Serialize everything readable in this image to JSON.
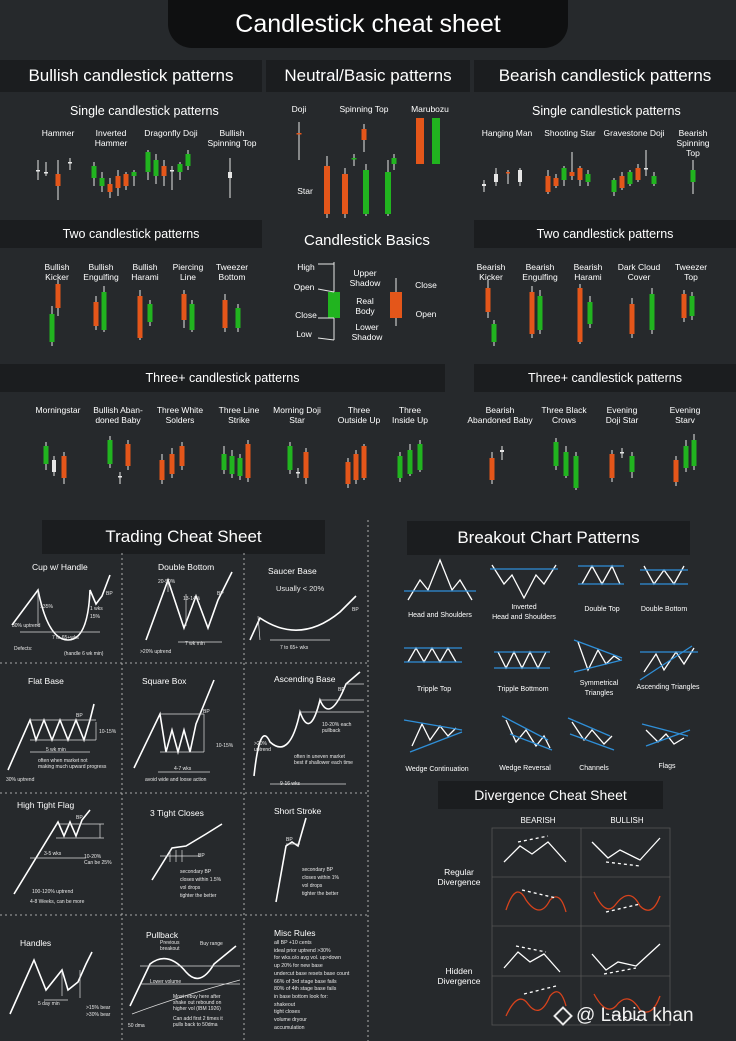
{
  "title": "Candlestick cheat sheet",
  "colors": {
    "bull": "#21b41f",
    "bear": "#e4561a",
    "bg": "#26292c",
    "banner": "#1b1d1f",
    "blue": "#2f8fd8"
  },
  "sections": {
    "bullish": "Bullish candlestick patterns",
    "neutral": "Neutral/Basic patterns",
    "bearish": "Bearish candlestick patterns",
    "single_left": "Single candlestick patterns",
    "single_right": "Single candlestick patterns",
    "two_left": "Two candlestick patterns",
    "two_right": "Two candlestick patterns",
    "basics": "Candlestick Basics",
    "three_left": "Three+ candlestick patterns",
    "three_right": "Three+ candlestick patterns",
    "trading": "Trading Cheat Sheet",
    "breakout": "Breakout Chart Patterns",
    "divergence": "Divergence Cheat Sheet"
  },
  "bullish_single": [
    "Hammer",
    "Inverted\nHammer",
    "Dragonfly Doji",
    "Bullish\nSpinning Top"
  ],
  "neutral_patterns": [
    "Doji",
    "Spinning Top",
    "Marubozu",
    "Star"
  ],
  "bearish_single": [
    "Hanging Man",
    "Shooting Star",
    "Gravestone Doji",
    "Bearish\nSpinning Top"
  ],
  "bullish_two": [
    "Bullish\nKicker",
    "Bullish\nEngulfing",
    "Bullish\nHarami",
    "Piercing\nLine",
    "Tweezer\nBottom"
  ],
  "bearish_two": [
    "Bearish\nKicker",
    "Bearish\nEngulfing",
    "Bearish\nHarami",
    "Dark Cloud\nCover",
    "Tweezer\nTop"
  ],
  "basics_labels": {
    "high": "High",
    "open_l": "Open",
    "close_l": "Close",
    "low": "Low",
    "upper": "Upper\nShadow",
    "real": "Real\nBody",
    "lower": "Lower\nShadow",
    "close_r": "Close",
    "open_r": "Open"
  },
  "bullish_three": [
    "Morningstar",
    "Bullish Aban-\ndoned Baby",
    "Three White\nSolders",
    "Three Line\nStrike",
    "Morning Doji\nStar",
    "Three\nOutside Up",
    "Three\nInside Up"
  ],
  "bearish_three": [
    "Bearish\nAbandoned Baby",
    "Three Black\nCrows",
    "Evening\nDoji Star",
    "Evening\nStarv"
  ],
  "trading": {
    "cup": {
      "title": "Cup w/ Handle",
      "notes": [
        ">35%",
        "1 wks\n15%",
        "30% uptrend",
        "7 to 65+wks",
        "BP",
        "Defects:",
        "(handle 6 wk min)"
      ]
    },
    "double_bottom": {
      "title": "Double Bottom",
      "notes": [
        "20-50%",
        "13-14%",
        "BP",
        "7 wk min",
        ">20% uptrend"
      ]
    },
    "saucer": {
      "title": "Saucer Base",
      "notes": [
        "Usually < 20%",
        "7 to 65+ wks",
        "BP"
      ]
    },
    "flat": {
      "title": "Flat Base",
      "notes": [
        "BP",
        "10-15%",
        "5 wk min",
        "often when market not\nmaking much upward progress",
        "30% uptrend"
      ]
    },
    "square": {
      "title": "Square Box",
      "notes": [
        "BP",
        "10-15%",
        "4-7 wks",
        "avoid wide and loose action"
      ]
    },
    "ascending": {
      "title": "Ascending Base",
      "notes": [
        "BP",
        "10-20% each\npullback",
        ">20%\nuptrend",
        "often in uneven market\nbest if shallower each time",
        "9-16 wks"
      ]
    },
    "flag": {
      "title": "High Tight Flag",
      "notes": [
        "BP",
        "3-5 wks",
        "10-20%\nCan be 25%",
        "100-120% uptrend",
        "4-8 Weeks, can be more"
      ]
    },
    "tight": {
      "title": "3 Tight Closes",
      "notes": [
        "BP",
        "secondary BP\ncloses within 1.5%\nvol drops\ntighter the better"
      ]
    },
    "short": {
      "title": "Short Stroke",
      "notes": [
        "BP",
        "secondary BP\ncloses within 1%\nvol drops\ntighter the better"
      ]
    },
    "handles": {
      "title": "Handles",
      "notes": [
        ">15% bear\n>30% bear",
        "5 day min"
      ]
    },
    "pullback": {
      "title": "Pullback",
      "notes": [
        "Previous\nbreakout",
        "Buy range",
        "Lower volume",
        "Most rebuy here after\nshake out rebound on\nhigher vol (IBM 1926)",
        "Can add first 2 times it\npulls back to 50dma",
        "50 dma"
      ]
    },
    "misc": {
      "title": "Misc Rules",
      "rules": "all BP +10 cents\nideal prior uptrend >30%\nfor wks.o/o avg vol. up>down\nup 20% for new base\nundercut base resets base count\n66% of 3rd stage base fails\n80% of 4th stage base fails\nin base bottom look for:\n    shakeout\n    tight closes\n    volume dryour\n    accumulation"
    }
  },
  "breakout": [
    "Head and Shoulders",
    "Inverted\nHead and Shoulders",
    "Double Top",
    "Double Bottom",
    "Tripple Top",
    "Tripple Bottmom",
    "Symmetrical\nTriangles",
    "Ascending Triangles",
    "Wedge Continuation",
    "Wedge Reversal",
    "Channels",
    "Flags"
  ],
  "divergence_cols": {
    "bearish": "BEARISH",
    "bullish": "BULLISH"
  },
  "divergence_rows": {
    "regular": "Regular\nDivergence",
    "hidden": "Hidden\nDivergence"
  },
  "watermark": "@ Labia khan"
}
